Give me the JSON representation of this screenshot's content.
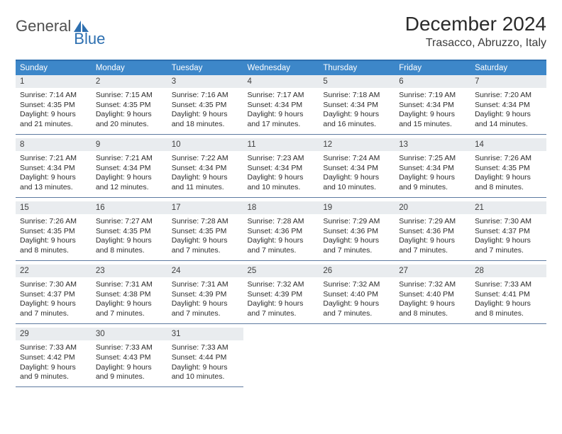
{
  "logo": {
    "part1": "General",
    "part2": "Blue"
  },
  "title": "December 2024",
  "location": "Trasacco, Abruzzo, Italy",
  "colors": {
    "header_bg": "#3d87c9",
    "border_top": "#2d6fb0",
    "daynum_bg": "#e9ecef",
    "row_border": "#5d7aa0"
  },
  "day_headers": [
    "Sunday",
    "Monday",
    "Tuesday",
    "Wednesday",
    "Thursday",
    "Friday",
    "Saturday"
  ],
  "weeks": [
    [
      {
        "n": "1",
        "sr": "7:14 AM",
        "ss": "4:35 PM",
        "dh": "9",
        "dm": "21"
      },
      {
        "n": "2",
        "sr": "7:15 AM",
        "ss": "4:35 PM",
        "dh": "9",
        "dm": "20"
      },
      {
        "n": "3",
        "sr": "7:16 AM",
        "ss": "4:35 PM",
        "dh": "9",
        "dm": "18"
      },
      {
        "n": "4",
        "sr": "7:17 AM",
        "ss": "4:34 PM",
        "dh": "9",
        "dm": "17"
      },
      {
        "n": "5",
        "sr": "7:18 AM",
        "ss": "4:34 PM",
        "dh": "9",
        "dm": "16"
      },
      {
        "n": "6",
        "sr": "7:19 AM",
        "ss": "4:34 PM",
        "dh": "9",
        "dm": "15"
      },
      {
        "n": "7",
        "sr": "7:20 AM",
        "ss": "4:34 PM",
        "dh": "9",
        "dm": "14"
      }
    ],
    [
      {
        "n": "8",
        "sr": "7:21 AM",
        "ss": "4:34 PM",
        "dh": "9",
        "dm": "13"
      },
      {
        "n": "9",
        "sr": "7:21 AM",
        "ss": "4:34 PM",
        "dh": "9",
        "dm": "12"
      },
      {
        "n": "10",
        "sr": "7:22 AM",
        "ss": "4:34 PM",
        "dh": "9",
        "dm": "11"
      },
      {
        "n": "11",
        "sr": "7:23 AM",
        "ss": "4:34 PM",
        "dh": "9",
        "dm": "10"
      },
      {
        "n": "12",
        "sr": "7:24 AM",
        "ss": "4:34 PM",
        "dh": "9",
        "dm": "10"
      },
      {
        "n": "13",
        "sr": "7:25 AM",
        "ss": "4:34 PM",
        "dh": "9",
        "dm": "9"
      },
      {
        "n": "14",
        "sr": "7:26 AM",
        "ss": "4:35 PM",
        "dh": "9",
        "dm": "8"
      }
    ],
    [
      {
        "n": "15",
        "sr": "7:26 AM",
        "ss": "4:35 PM",
        "dh": "9",
        "dm": "8"
      },
      {
        "n": "16",
        "sr": "7:27 AM",
        "ss": "4:35 PM",
        "dh": "9",
        "dm": "8"
      },
      {
        "n": "17",
        "sr": "7:28 AM",
        "ss": "4:35 PM",
        "dh": "9",
        "dm": "7"
      },
      {
        "n": "18",
        "sr": "7:28 AM",
        "ss": "4:36 PM",
        "dh": "9",
        "dm": "7"
      },
      {
        "n": "19",
        "sr": "7:29 AM",
        "ss": "4:36 PM",
        "dh": "9",
        "dm": "7"
      },
      {
        "n": "20",
        "sr": "7:29 AM",
        "ss": "4:36 PM",
        "dh": "9",
        "dm": "7"
      },
      {
        "n": "21",
        "sr": "7:30 AM",
        "ss": "4:37 PM",
        "dh": "9",
        "dm": "7"
      }
    ],
    [
      {
        "n": "22",
        "sr": "7:30 AM",
        "ss": "4:37 PM",
        "dh": "9",
        "dm": "7"
      },
      {
        "n": "23",
        "sr": "7:31 AM",
        "ss": "4:38 PM",
        "dh": "9",
        "dm": "7"
      },
      {
        "n": "24",
        "sr": "7:31 AM",
        "ss": "4:39 PM",
        "dh": "9",
        "dm": "7"
      },
      {
        "n": "25",
        "sr": "7:32 AM",
        "ss": "4:39 PM",
        "dh": "9",
        "dm": "7"
      },
      {
        "n": "26",
        "sr": "7:32 AM",
        "ss": "4:40 PM",
        "dh": "9",
        "dm": "7"
      },
      {
        "n": "27",
        "sr": "7:32 AM",
        "ss": "4:40 PM",
        "dh": "9",
        "dm": "8"
      },
      {
        "n": "28",
        "sr": "7:33 AM",
        "ss": "4:41 PM",
        "dh": "9",
        "dm": "8"
      }
    ],
    [
      {
        "n": "29",
        "sr": "7:33 AM",
        "ss": "4:42 PM",
        "dh": "9",
        "dm": "9"
      },
      {
        "n": "30",
        "sr": "7:33 AM",
        "ss": "4:43 PM",
        "dh": "9",
        "dm": "9"
      },
      {
        "n": "31",
        "sr": "7:33 AM",
        "ss": "4:44 PM",
        "dh": "9",
        "dm": "10"
      },
      null,
      null,
      null,
      null
    ]
  ],
  "labels": {
    "sunrise": "Sunrise: ",
    "sunset": "Sunset: ",
    "daylight1": "Daylight: ",
    "daylight2": " hours and ",
    "daylight3": " minutes."
  }
}
